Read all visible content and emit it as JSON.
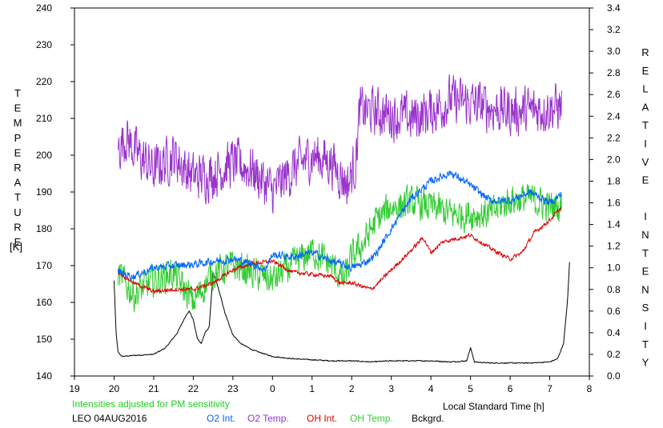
{
  "chart_data": {
    "type": "line",
    "station_label": "LEO 04AUG2016",
    "note": "Intensities adjusted for PM sensitivity",
    "xlabel": "Local Standard Time [h]",
    "ylabel_left": "TEMPERATURE [K]",
    "ylabel_right": "RELATIVE INTENSITY",
    "xlim": [
      19,
      32
    ],
    "ylim_left": [
      140,
      240
    ],
    "ylim_right": [
      0.0,
      3.4
    ],
    "x_ticks": [
      {
        "value": 19,
        "label": "19"
      },
      {
        "value": 20,
        "label": "20"
      },
      {
        "value": 21,
        "label": "21"
      },
      {
        "value": 22,
        "label": "22"
      },
      {
        "value": 23,
        "label": "23"
      },
      {
        "value": 24,
        "label": "0"
      },
      {
        "value": 25,
        "label": "1"
      },
      {
        "value": 26,
        "label": "2"
      },
      {
        "value": 27,
        "label": "3"
      },
      {
        "value": 28,
        "label": "4"
      },
      {
        "value": 29,
        "label": "5"
      },
      {
        "value": 30,
        "label": "6"
      },
      {
        "value": 31,
        "label": "7"
      },
      {
        "value": 32,
        "label": "8"
      }
    ],
    "y_left_ticks": [
      "140",
      "150",
      "160",
      "170",
      "180",
      "190",
      "200",
      "210",
      "220",
      "230",
      "240"
    ],
    "y_right_ticks": [
      "0.0",
      "0.2",
      "0.4",
      "0.6",
      "0.8",
      "1.0",
      "1.2",
      "1.4",
      "1.6",
      "1.8",
      "2.0",
      "2.2",
      "2.4",
      "2.6",
      "2.8",
      "3.0",
      "3.2",
      "3.4"
    ],
    "grid": false,
    "legend_position": "bottom",
    "series": [
      {
        "name": "O2 Int.",
        "color": "#0066ff",
        "axis": "right",
        "x": [
          20.1,
          20.5,
          21.0,
          21.5,
          22.0,
          22.5,
          23.0,
          23.5,
          23.8,
          24.0,
          24.5,
          25.0,
          25.5,
          26.0,
          26.3,
          26.6,
          27.0,
          27.5,
          28.0,
          28.5,
          29.0,
          29.5,
          30.0,
          30.5,
          31.0,
          31.3
        ],
        "y": [
          0.96,
          0.92,
          1.0,
          1.02,
          1.03,
          1.06,
          1.08,
          1.04,
          0.98,
          1.12,
          1.1,
          1.14,
          1.06,
          1.0,
          1.04,
          1.12,
          1.36,
          1.64,
          1.8,
          1.88,
          1.76,
          1.62,
          1.62,
          1.7,
          1.6,
          1.68
        ],
        "noise": 0.05
      },
      {
        "name": "O2 Temp.",
        "color": "#9933cc",
        "axis": "left",
        "x": [
          20.1,
          20.3,
          20.6,
          21.0,
          21.5,
          22.0,
          22.5,
          23.0,
          23.5,
          24.0,
          24.5,
          25.0,
          25.5,
          25.9,
          26.1,
          26.2,
          26.5,
          27.0,
          27.5,
          28.0,
          28.5,
          29.0,
          29.5,
          30.0,
          30.5,
          31.0,
          31.3
        ],
        "y": [
          202,
          205,
          200,
          196,
          200,
          194,
          195,
          198,
          196,
          190,
          196,
          200,
          198,
          192,
          198,
          212,
          212,
          211,
          210,
          212,
          215,
          214,
          213,
          212,
          212,
          213,
          213
        ],
        "noise": 9
      },
      {
        "name": "OH Int.",
        "color": "#dd0000",
        "axis": "right",
        "x": [
          20.1,
          20.5,
          21.0,
          21.5,
          22.0,
          22.5,
          23.0,
          23.5,
          24.0,
          24.5,
          25.0,
          25.5,
          25.7,
          26.0,
          26.5,
          27.0,
          27.5,
          27.8,
          28.0,
          28.3,
          29.0,
          29.5,
          30.0,
          30.3,
          30.6,
          31.0,
          31.3
        ],
        "y": [
          0.96,
          0.86,
          0.78,
          0.8,
          0.8,
          0.86,
          0.98,
          1.04,
          1.06,
          0.96,
          0.94,
          0.92,
          0.86,
          0.86,
          0.8,
          0.98,
          1.16,
          1.28,
          1.14,
          1.24,
          1.3,
          1.18,
          1.08,
          1.14,
          1.32,
          1.44,
          1.56
        ],
        "noise": 0.025
      },
      {
        "name": "OH Temp.",
        "color": "#33cc33",
        "axis": "left",
        "x": [
          20.1,
          20.5,
          21.0,
          21.5,
          22.0,
          22.5,
          23.0,
          23.5,
          24.0,
          24.5,
          25.0,
          25.5,
          25.8,
          26.0,
          26.3,
          26.6,
          27.0,
          27.5,
          28.0,
          28.5,
          29.0,
          29.5,
          30.0,
          30.5,
          31.0,
          31.3
        ],
        "y": [
          168,
          162,
          166,
          168,
          160,
          168,
          170,
          168,
          166,
          170,
          174,
          170,
          166,
          172,
          176,
          182,
          186,
          187,
          186,
          184,
          184,
          184,
          188,
          188,
          186,
          186
        ],
        "noise": 6
      },
      {
        "name": "Bckgrd.",
        "color": "#000000",
        "axis": "right",
        "x": [
          20.0,
          20.05,
          20.1,
          20.2,
          20.5,
          21.0,
          21.3,
          21.6,
          21.8,
          21.9,
          22.0,
          22.1,
          22.2,
          22.3,
          22.4,
          22.5,
          22.6,
          22.7,
          22.8,
          23.0,
          23.2,
          23.5,
          24.0,
          24.5,
          25.0,
          25.5,
          26.0,
          26.5,
          27.0,
          27.5,
          28.0,
          28.5,
          28.9,
          29.0,
          29.1,
          29.5,
          30.0,
          30.5,
          31.0,
          31.2,
          31.35,
          31.45,
          31.5
        ],
        "y": [
          0.88,
          0.4,
          0.22,
          0.18,
          0.19,
          0.2,
          0.26,
          0.4,
          0.55,
          0.6,
          0.52,
          0.35,
          0.3,
          0.4,
          0.45,
          0.95,
          0.85,
          0.72,
          0.58,
          0.38,
          0.3,
          0.24,
          0.18,
          0.16,
          0.15,
          0.14,
          0.14,
          0.13,
          0.14,
          0.14,
          0.14,
          0.13,
          0.14,
          0.26,
          0.13,
          0.12,
          0.12,
          0.12,
          0.13,
          0.16,
          0.3,
          0.7,
          1.05
        ],
        "noise": 0.006
      }
    ]
  }
}
